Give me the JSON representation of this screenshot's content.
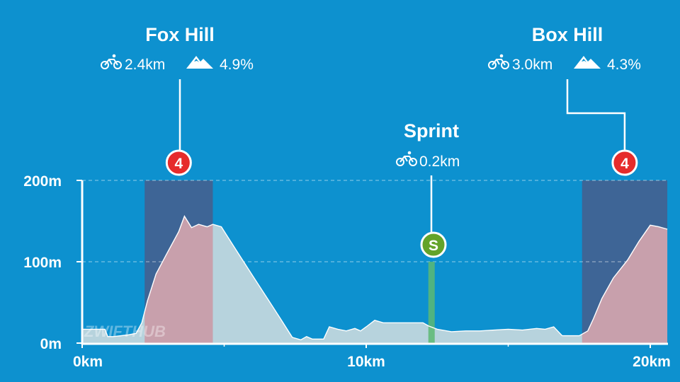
{
  "chart_data": {
    "type": "area",
    "title": "",
    "xlabel": "",
    "ylabel": "",
    "xlim": [
      0,
      20.6
    ],
    "ylim": [
      0,
      200
    ],
    "grid": "dashed horizontal",
    "x_ticks": [
      "0km",
      "10km",
      "20km"
    ],
    "y_ticks": [
      "0m",
      "100m",
      "200m"
    ],
    "elevation_profile": {
      "x_km": [
        0,
        0.8,
        0.9,
        1.1,
        1.6,
        1.9,
        2.1,
        2.3,
        2.6,
        2.95,
        3.4,
        3.6,
        3.85,
        4.1,
        4.4,
        4.6,
        4.9,
        5.1,
        5.5,
        6,
        6.5,
        7,
        7.4,
        7.7,
        7.9,
        8.1,
        8.5,
        8.7,
        9.0,
        9.3,
        9.6,
        9.8,
        10.0,
        10.3,
        10.6,
        11.0,
        11.5,
        12.0,
        12.2,
        12.5,
        13.0,
        13.5,
        14.0,
        14.5,
        15.0,
        15.5,
        16.0,
        16.3,
        16.6,
        16.9,
        17.3,
        17.5,
        17.8,
        18.0,
        18.3,
        18.7,
        19.2,
        19.6,
        20.0,
        20.3,
        20.6
      ],
      "elevation_m": [
        17,
        17,
        8,
        8,
        10,
        12,
        25,
        52,
        85,
        108,
        137,
        156,
        142,
        146,
        143,
        146,
        143,
        132,
        110,
        83,
        56,
        29,
        7,
        4,
        8,
        5,
        5,
        20,
        17,
        15,
        18,
        15,
        20,
        28,
        25,
        25,
        25,
        25,
        21,
        17,
        14,
        15,
        15,
        16,
        17,
        16,
        18,
        17,
        20,
        9,
        9,
        9,
        15,
        30,
        55,
        80,
        102,
        125,
        145,
        143,
        140
      ]
    },
    "segments": [
      {
        "name": "Fox Hill",
        "type": "climb",
        "length": "2.4km",
        "grade": "4.9%",
        "badge": "4",
        "start_km": 2.2,
        "end_km": 4.6
      },
      {
        "name": "Sprint",
        "type": "sprint",
        "length": "0.2km",
        "grade": "",
        "badge": "S",
        "start_km": 12.2,
        "end_km": 12.4
      },
      {
        "name": "Box Hill",
        "type": "climb",
        "length": "3.0km",
        "grade": "4.3%",
        "badge": "4",
        "start_km": 17.6,
        "end_km": 20.6
      }
    ],
    "watermark": "ZWIFTHUB"
  },
  "colors": {
    "background": "#0d91cf",
    "profile_fill": "#b7d3dd",
    "climb_profile_fill": "#c8a0ac",
    "climb_band": "#3e6596",
    "sprint_bar": "#5db873",
    "climb_badge": "#e62b2b",
    "sprint_badge": "#63a32a",
    "text": "#ffffff"
  },
  "icons": {
    "length": "bicycle-icon",
    "grade": "mountain-icon"
  }
}
